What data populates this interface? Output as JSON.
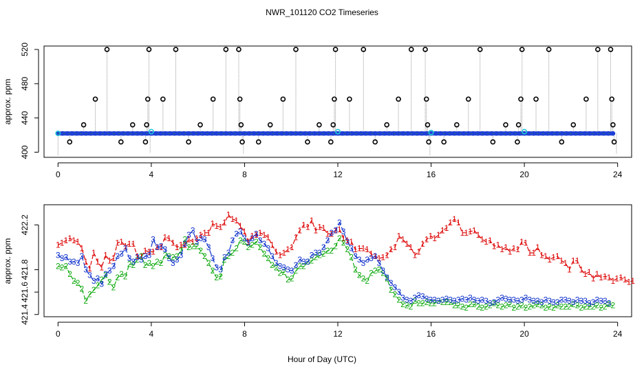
{
  "title": "NWR_101120  CO2 Timeseries",
  "colors": {
    "axis": "#000000",
    "connector": "#9a9a9a",
    "outlier": "#000000",
    "base": "#1f3fd6",
    "base_fill": "#2a9a2a",
    "cyan": "#22c4d8",
    "series1": "#dd0000",
    "series2": "#11aa11",
    "series3": "#1133cc"
  },
  "chart_data": [
    {
      "type": "scatter",
      "name": "top-panel",
      "xlabel": "",
      "ylabel": "approx. ppm",
      "xlim": [
        -0.6,
        24.6
      ],
      "ylim": [
        394,
        524
      ],
      "xticks": [
        0,
        4,
        8,
        12,
        16,
        20,
        24
      ],
      "yticks": [
        400,
        440,
        480,
        520
      ],
      "grid": false,
      "baseline_ppm": 421.9,
      "baseline_x_range": [
        0,
        23.8
      ],
      "outliers": [
        {
          "x": 0.5,
          "y": 412
        },
        {
          "x": 1.1,
          "y": 432
        },
        {
          "x": 1.6,
          "y": 462
        },
        {
          "x": 2.1,
          "y": 520
        },
        {
          "x": 2.7,
          "y": 412
        },
        {
          "x": 3.2,
          "y": 432
        },
        {
          "x": 3.75,
          "y": 412
        },
        {
          "x": 3.8,
          "y": 432
        },
        {
          "x": 3.85,
          "y": 462
        },
        {
          "x": 3.9,
          "y": 520
        },
        {
          "x": 4.5,
          "y": 462
        },
        {
          "x": 5.05,
          "y": 520
        },
        {
          "x": 5.6,
          "y": 412
        },
        {
          "x": 6.1,
          "y": 432
        },
        {
          "x": 6.65,
          "y": 462
        },
        {
          "x": 7.2,
          "y": 520
        },
        {
          "x": 7.75,
          "y": 520
        },
        {
          "x": 7.8,
          "y": 462
        },
        {
          "x": 7.85,
          "y": 432
        },
        {
          "x": 7.9,
          "y": 412
        },
        {
          "x": 8.6,
          "y": 412
        },
        {
          "x": 9.1,
          "y": 432
        },
        {
          "x": 9.65,
          "y": 462
        },
        {
          "x": 10.2,
          "y": 520
        },
        {
          "x": 10.7,
          "y": 412
        },
        {
          "x": 11.2,
          "y": 432
        },
        {
          "x": 11.7,
          "y": 412
        },
        {
          "x": 11.8,
          "y": 432
        },
        {
          "x": 11.85,
          "y": 462
        },
        {
          "x": 11.9,
          "y": 520
        },
        {
          "x": 12.5,
          "y": 462
        },
        {
          "x": 13.1,
          "y": 520
        },
        {
          "x": 13.6,
          "y": 412
        },
        {
          "x": 14.1,
          "y": 432
        },
        {
          "x": 14.6,
          "y": 462
        },
        {
          "x": 15.15,
          "y": 520
        },
        {
          "x": 15.75,
          "y": 520
        },
        {
          "x": 15.8,
          "y": 462
        },
        {
          "x": 15.85,
          "y": 432
        },
        {
          "x": 15.9,
          "y": 412
        },
        {
          "x": 16.55,
          "y": 412
        },
        {
          "x": 17.1,
          "y": 432
        },
        {
          "x": 17.6,
          "y": 462
        },
        {
          "x": 18.1,
          "y": 520
        },
        {
          "x": 18.65,
          "y": 412
        },
        {
          "x": 19.2,
          "y": 432
        },
        {
          "x": 19.7,
          "y": 412
        },
        {
          "x": 19.75,
          "y": 432
        },
        {
          "x": 19.85,
          "y": 462
        },
        {
          "x": 19.9,
          "y": 520
        },
        {
          "x": 20.5,
          "y": 462
        },
        {
          "x": 21.05,
          "y": 520
        },
        {
          "x": 21.6,
          "y": 412
        },
        {
          "x": 22.1,
          "y": 432
        },
        {
          "x": 22.65,
          "y": 462
        },
        {
          "x": 23.15,
          "y": 520
        },
        {
          "x": 23.7,
          "y": 520
        },
        {
          "x": 23.75,
          "y": 462
        },
        {
          "x": 23.8,
          "y": 432
        },
        {
          "x": 23.85,
          "y": 412
        }
      ],
      "drop_lines": [
        {
          "x": 0.0,
          "y": 396
        },
        {
          "x": 3.95,
          "y": 399
        },
        {
          "x": 7.95,
          "y": 398
        },
        {
          "x": 15.95,
          "y": 396
        },
        {
          "x": 23.95,
          "y": 398
        }
      ],
      "cyan_points": [
        {
          "x": 0.0,
          "y": 422
        },
        {
          "x": 4.0,
          "y": 424
        },
        {
          "x": 12.0,
          "y": 424
        },
        {
          "x": 16.0,
          "y": 423
        },
        {
          "x": 20.0,
          "y": 424
        }
      ]
    },
    {
      "type": "line",
      "name": "bottom-panel",
      "xlabel": "Hour of Day (UTC)",
      "ylabel": "approx. ppm",
      "xlim": [
        -0.6,
        24.6
      ],
      "ylim": [
        421.38,
        422.38
      ],
      "xticks": [
        0,
        4,
        8,
        12,
        16,
        20,
        24
      ],
      "yticks": [
        421.4,
        421.6,
        421.8,
        422.2
      ],
      "ytick_labels": [
        "421.4",
        "421.6",
        "421.8",
        "422.2"
      ],
      "grid": false,
      "series": [
        {
          "name": "1",
          "label": "1",
          "x_start": 0.0,
          "x_step": 0.17,
          "values": [
            422.02,
            422.04,
            422.06,
            422.08,
            422.06,
            422.05,
            421.99,
            421.87,
            421.81,
            421.95,
            421.87,
            421.82,
            421.93,
            421.88,
            421.9,
            422.04,
            422.05,
            422.01,
            422.03,
            422.03,
            421.92,
            421.92,
            421.97,
            421.96,
            421.96,
            422.0,
            422.0,
            422.09,
            422.08,
            422.04,
            422.0,
            422.02,
            422.02,
            422.07,
            422.05,
            422.08,
            422.11,
            422.13,
            422.13,
            422.21,
            422.19,
            422.18,
            422.22,
            422.29,
            422.25,
            422.24,
            422.19,
            422.14,
            422.05,
            422.1,
            422.11,
            422.13,
            422.11,
            422.09,
            422.02,
            421.96,
            421.93,
            421.95,
            421.98,
            422.0,
            422.09,
            422.15,
            422.2,
            422.18,
            422.24,
            422.15,
            422.18,
            422.17,
            422.12,
            422.12,
            422.15,
            422.16,
            422.08,
            422.06,
            422.05,
            421.98,
            421.99,
            421.99,
            421.98,
            421.94,
            421.92,
            421.9,
            421.91,
            421.93,
            421.98,
            422.0,
            422.1,
            422.07,
            422.03,
            422.0,
            421.93,
            421.96,
            422.03,
            422.07,
            422.1,
            422.08,
            422.11,
            422.15,
            422.17,
            422.22,
            422.25,
            422.22,
            422.13,
            422.13,
            422.14,
            422.15,
            422.11,
            422.07,
            422.05,
            422.06,
            422.01,
            422.02,
            421.98,
            422.0,
            421.96,
            421.99,
            421.98,
            422.05,
            422.04,
            421.95,
            421.95,
            422.0,
            421.93,
            421.92,
            421.89,
            421.91,
            421.92,
            421.88,
            421.86,
            421.8,
            421.88,
            421.88,
            421.8,
            421.76,
            421.78,
            421.72,
            421.76,
            421.73,
            421.74,
            421.73,
            421.7,
            421.72,
            421.73,
            421.71,
            421.69,
            421.7
          ]
        },
        {
          "name": "2",
          "label": "2",
          "x_start": 0.0,
          "x_step": 0.17,
          "values": [
            421.83,
            421.82,
            421.83,
            421.76,
            421.7,
            421.68,
            421.63,
            421.52,
            421.58,
            421.62,
            421.66,
            421.71,
            421.75,
            421.69,
            421.64,
            421.73,
            421.76,
            421.74,
            421.85,
            421.84,
            421.89,
            421.92,
            421.84,
            421.86,
            421.83,
            421.87,
            421.86,
            421.93,
            421.92,
            421.91,
            421.92,
            421.97,
            422.07,
            422.0,
            422.01,
            422.01,
            421.97,
            421.92,
            421.86,
            421.79,
            421.73,
            421.74,
            421.89,
            421.92,
            421.95,
            421.99,
            422.06,
            422.05,
            422.0,
            422.02,
            422.05,
            422.0,
            421.94,
            421.9,
            421.84,
            421.82,
            421.77,
            421.78,
            421.71,
            421.72,
            421.79,
            421.83,
            421.83,
            421.87,
            421.88,
            421.91,
            421.93,
            421.94,
            421.97,
            421.97,
            422.01,
            422.08,
            422.04,
            421.98,
            421.91,
            421.8,
            421.75,
            421.72,
            421.7,
            421.77,
            421.79,
            421.8,
            421.77,
            421.72,
            421.62,
            421.58,
            421.53,
            421.49,
            421.48,
            421.47,
            421.52,
            421.5,
            421.5,
            421.51,
            421.5,
            421.5,
            421.52,
            421.51,
            421.51,
            421.51,
            421.48,
            421.48,
            421.47,
            421.46,
            421.49,
            421.49,
            421.47,
            421.46,
            421.47,
            421.48,
            421.5,
            421.48,
            421.47,
            421.48,
            421.49,
            421.46,
            421.47,
            421.48,
            421.46,
            421.47,
            421.48,
            421.49,
            421.48,
            421.46,
            421.47,
            421.46,
            421.48,
            421.47,
            421.47,
            421.47,
            421.49,
            421.48,
            421.46,
            421.47,
            421.47,
            421.47,
            421.48,
            421.46,
            421.47,
            421.49,
            421.48
          ]
        },
        {
          "name": "3",
          "label": "3",
          "x_start": 0.0,
          "x_step": 0.17,
          "values": [
            421.93,
            421.9,
            421.91,
            421.87,
            421.87,
            421.86,
            421.92,
            421.8,
            421.75,
            421.7,
            421.72,
            421.67,
            421.76,
            421.79,
            421.83,
            421.92,
            421.94,
            421.99,
            421.9,
            421.87,
            421.91,
            421.89,
            421.92,
            421.93,
            422.07,
            422.0,
            422.01,
            421.98,
            421.9,
            421.86,
            421.89,
            421.93,
            422.03,
            422.11,
            422.15,
            422.05,
            422.08,
            422.07,
            422.0,
            421.9,
            421.82,
            421.8,
            421.91,
            421.95,
            422.06,
            422.12,
            422.14,
            422.08,
            422.04,
            422.08,
            422.12,
            422.06,
            422.03,
            421.99,
            421.92,
            421.86,
            421.83,
            421.82,
            421.8,
            421.79,
            421.84,
            421.89,
            421.87,
            421.87,
            421.93,
            421.95,
            421.95,
            422.0,
            422.06,
            422.13,
            422.15,
            422.22,
            422.14,
            422.05,
            421.99,
            421.92,
            421.89,
            421.86,
            421.89,
            421.9,
            421.92,
            421.86,
            421.79,
            421.73,
            421.68,
            421.64,
            421.6,
            421.55,
            421.53,
            421.52,
            421.55,
            421.57,
            421.56,
            421.54,
            421.53,
            421.53,
            421.52,
            421.53,
            421.54,
            421.53,
            421.52,
            421.53,
            421.54,
            421.53,
            421.55,
            421.53,
            421.52,
            421.53,
            421.52,
            421.5,
            421.51,
            421.53,
            421.55,
            421.54,
            421.53,
            421.53,
            421.52,
            421.53,
            421.55,
            421.53,
            421.52,
            421.52,
            421.51,
            421.53,
            421.52,
            421.51,
            421.51,
            421.53,
            421.53,
            421.52,
            421.51,
            421.53,
            421.52,
            421.52,
            421.5,
            421.51,
            421.53,
            421.52,
            421.52,
            421.5
          ]
        }
      ]
    }
  ]
}
